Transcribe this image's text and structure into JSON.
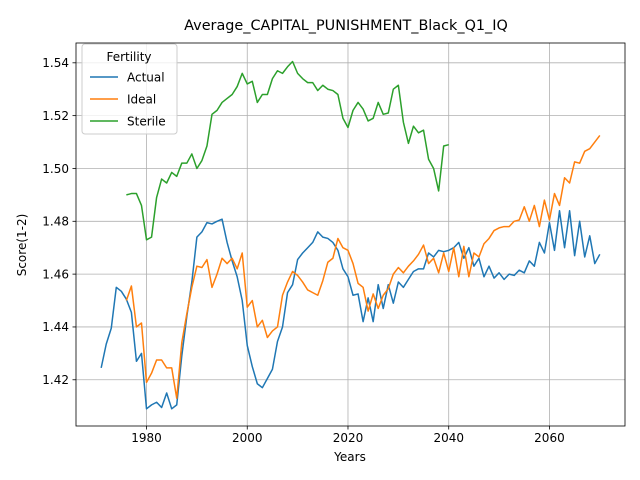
{
  "chart_data": {
    "type": "line",
    "title": "Average_CAPITAL_PUNISHMENT_Black_Q1_IQ",
    "xlabel": "Years",
    "ylabel": "Score(1-2)",
    "xlim": [
      1966,
      2075
    ],
    "ylim": [
      1.4025,
      1.5475
    ],
    "xticks": [
      1980,
      2000,
      2020,
      2040,
      2060
    ],
    "yticks": [
      1.42,
      1.44,
      1.46,
      1.48,
      1.5,
      1.52,
      1.54
    ],
    "ytick_labels": [
      "1.42",
      "1.44",
      "1.46",
      "1.48",
      "1.50",
      "1.52",
      "1.54"
    ],
    "grid": true,
    "legend": {
      "title": "Fertility",
      "position": "top-left"
    },
    "series": [
      {
        "name": "Actual",
        "color": "#1f77b4",
        "x": [
          1971,
          1972,
          1973,
          1974,
          1975,
          1976,
          1977,
          1978,
          1979,
          1980,
          1981,
          1982,
          1983,
          1984,
          1985,
          1986,
          1987,
          1988,
          1989,
          1990,
          1991,
          1992,
          1993,
          1994,
          1995,
          1996,
          1997,
          1998,
          1999,
          2000,
          2001,
          2002,
          2003,
          2004,
          2005,
          2006,
          2007,
          2008,
          2009,
          2010,
          2011,
          2012,
          2013,
          2014,
          2015,
          2016,
          2017,
          2018,
          2019,
          2020,
          2021,
          2022,
          2023,
          2024,
          2025,
          2026,
          2027,
          2028,
          2029,
          2030,
          2031,
          2032,
          2033,
          2034,
          2035,
          2036,
          2037,
          2038,
          2039,
          2040,
          2041,
          2042,
          2043,
          2044,
          2045,
          2046,
          2047,
          2048,
          2049,
          2050,
          2051,
          2052,
          2053,
          2054,
          2055,
          2056,
          2057,
          2058,
          2059,
          2060,
          2061,
          2062,
          2063,
          2064,
          2065,
          2066,
          2067,
          2068,
          2069,
          2070
        ],
        "values": [
          1.4245,
          1.4335,
          1.4395,
          1.455,
          1.4535,
          1.4505,
          1.4455,
          1.427,
          1.43,
          1.409,
          1.4105,
          1.4115,
          1.4095,
          1.415,
          1.409,
          1.4105,
          1.429,
          1.444,
          1.457,
          1.474,
          1.476,
          1.4795,
          1.479,
          1.48,
          1.4808,
          1.472,
          1.465,
          1.459,
          1.45,
          1.433,
          1.425,
          1.4185,
          1.417,
          1.4205,
          1.424,
          1.4345,
          1.44,
          1.453,
          1.456,
          1.4655,
          1.468,
          1.47,
          1.472,
          1.476,
          1.474,
          1.4735,
          1.472,
          1.469,
          1.462,
          1.459,
          1.452,
          1.4525,
          1.442,
          1.451,
          1.442,
          1.456,
          1.447,
          1.456,
          1.449,
          1.457,
          1.455,
          1.458,
          1.461,
          1.462,
          1.462,
          1.468,
          1.4665,
          1.469,
          1.4685,
          1.469,
          1.47,
          1.472,
          1.466,
          1.47,
          1.463,
          1.466,
          1.459,
          1.463,
          1.4585,
          1.4605,
          1.458,
          1.46,
          1.4595,
          1.4615,
          1.4605,
          1.465,
          1.463,
          1.472,
          1.468,
          1.4795,
          1.469,
          1.484,
          1.47,
          1.484,
          1.467,
          1.48,
          1.4665,
          1.4745,
          1.464,
          1.4675
        ]
      },
      {
        "name": "Ideal",
        "color": "#ff7f0e",
        "x": [
          1976,
          1977,
          1978,
          1979,
          1980,
          1981,
          1982,
          1983,
          1984,
          1985,
          1986,
          1987,
          1988,
          1989,
          1990,
          1991,
          1992,
          1993,
          1994,
          1995,
          1996,
          1997,
          1998,
          1999,
          2000,
          2001,
          2002,
          2003,
          2004,
          2005,
          2006,
          2007,
          2008,
          2009,
          2010,
          2011,
          2012,
          2013,
          2014,
          2015,
          2016,
          2017,
          2018,
          2019,
          2020,
          2021,
          2022,
          2023,
          2024,
          2025,
          2026,
          2027,
          2028,
          2029,
          2030,
          2031,
          2032,
          2033,
          2034,
          2035,
          2036,
          2037,
          2038,
          2039,
          2040,
          2041,
          2042,
          2043,
          2044,
          2045,
          2046,
          2047,
          2048,
          2049,
          2050,
          2051,
          2052,
          2053,
          2054,
          2055,
          2056,
          2057,
          2058,
          2059,
          2060,
          2061,
          2062,
          2063,
          2064,
          2065,
          2066,
          2067,
          2068,
          2069,
          2070
        ],
        "values": [
          1.45,
          1.4555,
          1.44,
          1.4415,
          1.419,
          1.4225,
          1.4275,
          1.4275,
          1.4245,
          1.4245,
          1.413,
          1.434,
          1.445,
          1.455,
          1.463,
          1.4625,
          1.4655,
          1.455,
          1.46,
          1.466,
          1.464,
          1.466,
          1.462,
          1.468,
          1.4475,
          1.45,
          1.44,
          1.4425,
          1.436,
          1.4385,
          1.44,
          1.452,
          1.457,
          1.461,
          1.4595,
          1.457,
          1.454,
          1.453,
          1.452,
          1.4575,
          1.4645,
          1.466,
          1.4735,
          1.47,
          1.469,
          1.464,
          1.4565,
          1.455,
          1.446,
          1.4525,
          1.447,
          1.452,
          1.4545,
          1.46,
          1.4625,
          1.4605,
          1.463,
          1.465,
          1.4675,
          1.471,
          1.464,
          1.466,
          1.4605,
          1.468,
          1.461,
          1.47,
          1.459,
          1.4705,
          1.459,
          1.468,
          1.4665,
          1.4715,
          1.4735,
          1.4765,
          1.4775,
          1.478,
          1.478,
          1.48,
          1.4805,
          1.4855,
          1.48,
          1.486,
          1.478,
          1.488,
          1.4805,
          1.4905,
          1.486,
          1.4965,
          1.4945,
          1.5025,
          1.502,
          1.5065,
          1.5075,
          1.51,
          1.5125
        ]
      },
      {
        "name": "Sterile",
        "color": "#2ca02c",
        "x": [
          1976,
          1977,
          1978,
          1979,
          1980,
          1981,
          1982,
          1983,
          1984,
          1985,
          1986,
          1987,
          1988,
          1989,
          1990,
          1991,
          1992,
          1993,
          1994,
          1995,
          1996,
          1997,
          1998,
          1999,
          2000,
          2001,
          2002,
          2003,
          2004,
          2005,
          2006,
          2007,
          2008,
          2009,
          2010,
          2011,
          2012,
          2013,
          2014,
          2015,
          2016,
          2017,
          2018,
          2019,
          2020,
          2021,
          2022,
          2023,
          2024,
          2025,
          2026,
          2027,
          2028,
          2029,
          2030,
          2031,
          2032,
          2033,
          2034,
          2035,
          2036,
          2037,
          2038,
          2039,
          2040
        ],
        "values": [
          1.49,
          1.4905,
          1.4905,
          1.486,
          1.473,
          1.474,
          1.489,
          1.496,
          1.4945,
          1.4985,
          1.497,
          1.502,
          1.502,
          1.5055,
          1.5,
          1.503,
          1.5085,
          1.5205,
          1.522,
          1.525,
          1.5265,
          1.528,
          1.531,
          1.536,
          1.532,
          1.533,
          1.525,
          1.528,
          1.528,
          1.534,
          1.537,
          1.536,
          1.5385,
          1.5405,
          1.536,
          1.534,
          1.5325,
          1.5325,
          1.5295,
          1.5315,
          1.53,
          1.5295,
          1.528,
          1.519,
          1.5155,
          1.522,
          1.525,
          1.5225,
          1.518,
          1.519,
          1.525,
          1.5205,
          1.521,
          1.53,
          1.5315,
          1.5175,
          1.5095,
          1.516,
          1.5135,
          1.5145,
          1.5035,
          1.5,
          1.4915,
          1.5085,
          1.509
        ]
      }
    ]
  }
}
